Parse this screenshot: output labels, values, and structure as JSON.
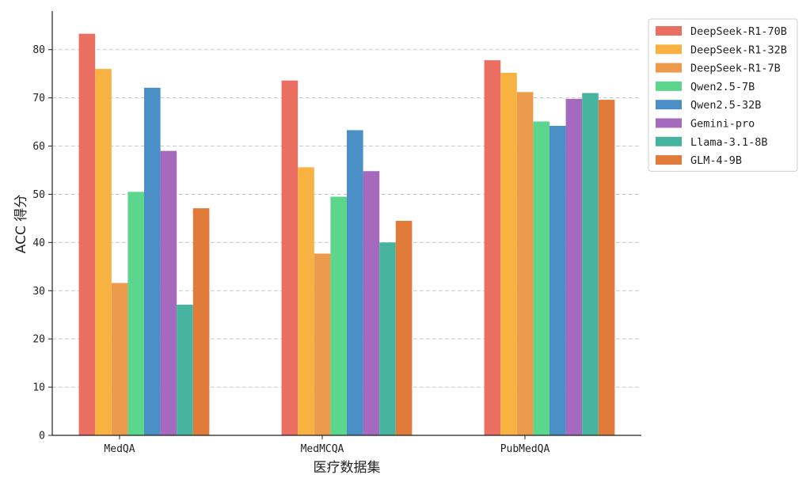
{
  "chart_data": {
    "type": "bar",
    "xlabel": "医疗数据集",
    "ylabel": "ACC 得分",
    "ylim": [
      0,
      88
    ],
    "yticks": [
      0,
      10,
      20,
      30,
      40,
      50,
      60,
      70,
      80
    ],
    "grid": "horizontal dashed",
    "legend_position": "top-right",
    "categories": [
      "MedQA",
      "MedMCQA",
      "PubMedQA"
    ],
    "series": [
      {
        "name": "DeepSeek-R1-70B",
        "color": "#ea6e62",
        "values": [
          83.3,
          73.6,
          77.8
        ]
      },
      {
        "name": "DeepSeek-R1-32B",
        "color": "#f7b242",
        "values": [
          76.0,
          55.6,
          75.2
        ]
      },
      {
        "name": "DeepSeek-R1-7B",
        "color": "#ec9a4c",
        "values": [
          31.6,
          37.7,
          71.2
        ]
      },
      {
        "name": "Qwen2.5-7B",
        "color": "#5cd68c",
        "values": [
          50.5,
          49.5,
          65.1
        ]
      },
      {
        "name": "Qwen2.5-32B",
        "color": "#4a90c6",
        "values": [
          72.1,
          63.3,
          64.2
        ]
      },
      {
        "name": "Gemini-pro",
        "color": "#a569bd",
        "values": [
          59.0,
          54.8,
          69.8
        ]
      },
      {
        "name": "Llama-3.1-8B",
        "color": "#45b39d",
        "values": [
          27.1,
          40.0,
          71.0
        ]
      },
      {
        "name": "GLM-4-9B",
        "color": "#e07b39",
        "values": [
          47.1,
          44.5,
          69.6
        ]
      }
    ]
  }
}
